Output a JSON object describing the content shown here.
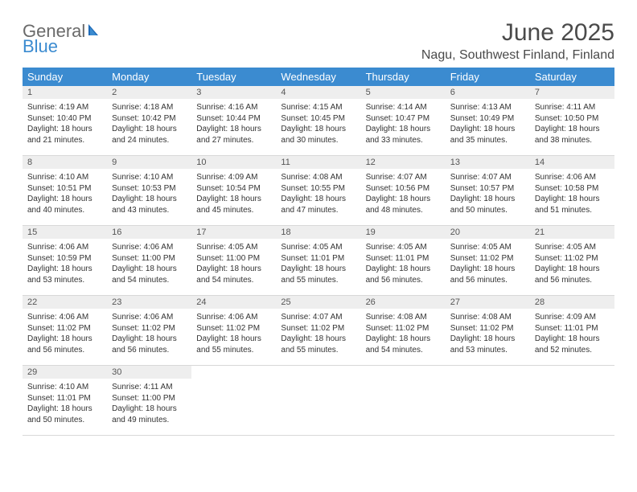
{
  "logo": {
    "text1": "General",
    "text2": "Blue"
  },
  "title": "June 2025",
  "location": "Nagu, Southwest Finland, Finland",
  "weekday_header_bg": "#3b8bd0",
  "weekday_header_fg": "#ffffff",
  "daynum_bg": "#eeeeee",
  "weekdays": [
    "Sunday",
    "Monday",
    "Tuesday",
    "Wednesday",
    "Thursday",
    "Friday",
    "Saturday"
  ],
  "days": [
    {
      "n": 1,
      "sr": "4:19 AM",
      "ss": "10:40 PM",
      "dl": "18 hours and 21 minutes."
    },
    {
      "n": 2,
      "sr": "4:18 AM",
      "ss": "10:42 PM",
      "dl": "18 hours and 24 minutes."
    },
    {
      "n": 3,
      "sr": "4:16 AM",
      "ss": "10:44 PM",
      "dl": "18 hours and 27 minutes."
    },
    {
      "n": 4,
      "sr": "4:15 AM",
      "ss": "10:45 PM",
      "dl": "18 hours and 30 minutes."
    },
    {
      "n": 5,
      "sr": "4:14 AM",
      "ss": "10:47 PM",
      "dl": "18 hours and 33 minutes."
    },
    {
      "n": 6,
      "sr": "4:13 AM",
      "ss": "10:49 PM",
      "dl": "18 hours and 35 minutes."
    },
    {
      "n": 7,
      "sr": "4:11 AM",
      "ss": "10:50 PM",
      "dl": "18 hours and 38 minutes."
    },
    {
      "n": 8,
      "sr": "4:10 AM",
      "ss": "10:51 PM",
      "dl": "18 hours and 40 minutes."
    },
    {
      "n": 9,
      "sr": "4:10 AM",
      "ss": "10:53 PM",
      "dl": "18 hours and 43 minutes."
    },
    {
      "n": 10,
      "sr": "4:09 AM",
      "ss": "10:54 PM",
      "dl": "18 hours and 45 minutes."
    },
    {
      "n": 11,
      "sr": "4:08 AM",
      "ss": "10:55 PM",
      "dl": "18 hours and 47 minutes."
    },
    {
      "n": 12,
      "sr": "4:07 AM",
      "ss": "10:56 PM",
      "dl": "18 hours and 48 minutes."
    },
    {
      "n": 13,
      "sr": "4:07 AM",
      "ss": "10:57 PM",
      "dl": "18 hours and 50 minutes."
    },
    {
      "n": 14,
      "sr": "4:06 AM",
      "ss": "10:58 PM",
      "dl": "18 hours and 51 minutes."
    },
    {
      "n": 15,
      "sr": "4:06 AM",
      "ss": "10:59 PM",
      "dl": "18 hours and 53 minutes."
    },
    {
      "n": 16,
      "sr": "4:06 AM",
      "ss": "11:00 PM",
      "dl": "18 hours and 54 minutes."
    },
    {
      "n": 17,
      "sr": "4:05 AM",
      "ss": "11:00 PM",
      "dl": "18 hours and 54 minutes."
    },
    {
      "n": 18,
      "sr": "4:05 AM",
      "ss": "11:01 PM",
      "dl": "18 hours and 55 minutes."
    },
    {
      "n": 19,
      "sr": "4:05 AM",
      "ss": "11:01 PM",
      "dl": "18 hours and 56 minutes."
    },
    {
      "n": 20,
      "sr": "4:05 AM",
      "ss": "11:02 PM",
      "dl": "18 hours and 56 minutes."
    },
    {
      "n": 21,
      "sr": "4:05 AM",
      "ss": "11:02 PM",
      "dl": "18 hours and 56 minutes."
    },
    {
      "n": 22,
      "sr": "4:06 AM",
      "ss": "11:02 PM",
      "dl": "18 hours and 56 minutes."
    },
    {
      "n": 23,
      "sr": "4:06 AM",
      "ss": "11:02 PM",
      "dl": "18 hours and 56 minutes."
    },
    {
      "n": 24,
      "sr": "4:06 AM",
      "ss": "11:02 PM",
      "dl": "18 hours and 55 minutes."
    },
    {
      "n": 25,
      "sr": "4:07 AM",
      "ss": "11:02 PM",
      "dl": "18 hours and 55 minutes."
    },
    {
      "n": 26,
      "sr": "4:08 AM",
      "ss": "11:02 PM",
      "dl": "18 hours and 54 minutes."
    },
    {
      "n": 27,
      "sr": "4:08 AM",
      "ss": "11:02 PM",
      "dl": "18 hours and 53 minutes."
    },
    {
      "n": 28,
      "sr": "4:09 AM",
      "ss": "11:01 PM",
      "dl": "18 hours and 52 minutes."
    },
    {
      "n": 29,
      "sr": "4:10 AM",
      "ss": "11:01 PM",
      "dl": "18 hours and 50 minutes."
    },
    {
      "n": 30,
      "sr": "4:11 AM",
      "ss": "11:00 PM",
      "dl": "18 hours and 49 minutes."
    }
  ],
  "labels": {
    "sunrise": "Sunrise:",
    "sunset": "Sunset:",
    "daylight": "Daylight:"
  }
}
